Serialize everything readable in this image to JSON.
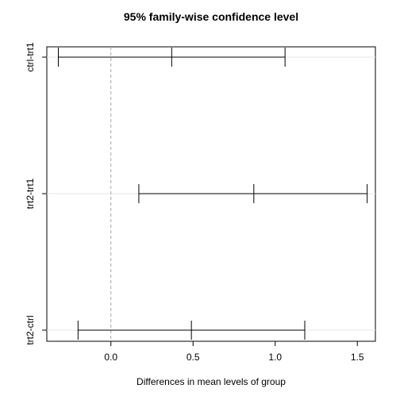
{
  "chart_data": {
    "type": "interval",
    "title": "95% family-wise confidence level",
    "xlabel": "Differences in mean levels of group",
    "ylabel": "",
    "xlim": [
      -0.39,
      1.61
    ],
    "x_ticks": [
      "0.0",
      "0.5",
      "1.0",
      "1.5"
    ],
    "x_tick_values": [
      0,
      0.5,
      1.0,
      1.5
    ],
    "reference_line": 0,
    "grid": "horizontal-light",
    "intervals": [
      {
        "label": "ctrl-trt1",
        "lower": -0.32,
        "estimate": 0.37,
        "upper": 1.06
      },
      {
        "label": "trt2-trt1",
        "lower": 0.17,
        "estimate": 0.87,
        "upper": 1.56
      },
      {
        "label": "trt2-ctrl",
        "lower": -0.2,
        "estimate": 0.49,
        "upper": 1.18
      }
    ]
  }
}
